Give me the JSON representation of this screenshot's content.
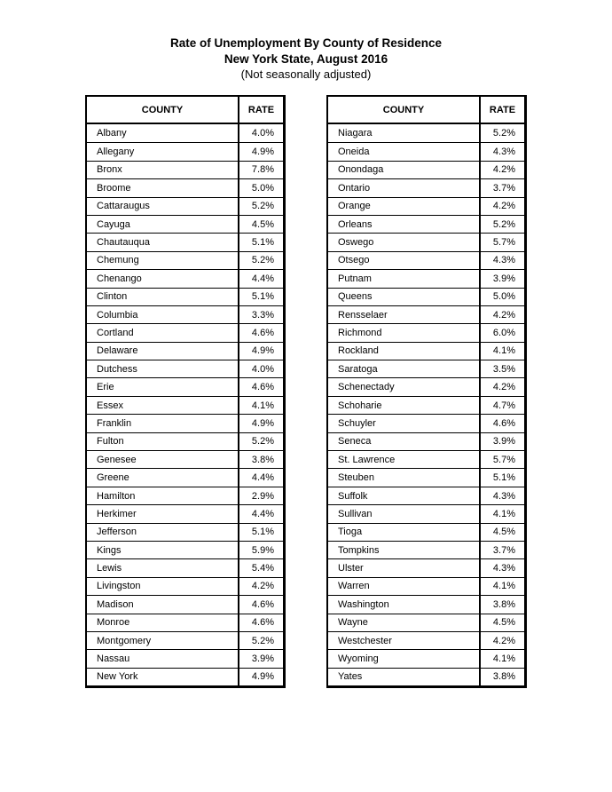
{
  "title": {
    "line1": "Rate of Unemployment By County of Residence",
    "line2": "New York State, August 2016",
    "line3": "(Not seasonally adjusted)"
  },
  "headers": {
    "county": "COUNTY",
    "rate": "RATE"
  },
  "tables": [
    {
      "rows": [
        {
          "county": "Albany",
          "rate": "4.0%"
        },
        {
          "county": "Allegany",
          "rate": "4.9%"
        },
        {
          "county": "Bronx",
          "rate": "7.8%"
        },
        {
          "county": "Broome",
          "rate": "5.0%"
        },
        {
          "county": "Cattaraugus",
          "rate": "5.2%"
        },
        {
          "county": "Cayuga",
          "rate": "4.5%"
        },
        {
          "county": "Chautauqua",
          "rate": "5.1%"
        },
        {
          "county": "Chemung",
          "rate": "5.2%"
        },
        {
          "county": "Chenango",
          "rate": "4.4%"
        },
        {
          "county": "Clinton",
          "rate": "5.1%"
        },
        {
          "county": "Columbia",
          "rate": "3.3%"
        },
        {
          "county": "Cortland",
          "rate": "4.6%"
        },
        {
          "county": "Delaware",
          "rate": "4.9%"
        },
        {
          "county": "Dutchess",
          "rate": "4.0%"
        },
        {
          "county": "Erie",
          "rate": "4.6%"
        },
        {
          "county": "Essex",
          "rate": "4.1%"
        },
        {
          "county": "Franklin",
          "rate": "4.9%"
        },
        {
          "county": "Fulton",
          "rate": "5.2%"
        },
        {
          "county": "Genesee",
          "rate": "3.8%"
        },
        {
          "county": "Greene",
          "rate": "4.4%"
        },
        {
          "county": "Hamilton",
          "rate": "2.9%"
        },
        {
          "county": "Herkimer",
          "rate": "4.4%"
        },
        {
          "county": "Jefferson",
          "rate": "5.1%"
        },
        {
          "county": "Kings",
          "rate": "5.9%"
        },
        {
          "county": "Lewis",
          "rate": "5.4%"
        },
        {
          "county": "Livingston",
          "rate": "4.2%"
        },
        {
          "county": "Madison",
          "rate": "4.6%"
        },
        {
          "county": "Monroe",
          "rate": "4.6%"
        },
        {
          "county": "Montgomery",
          "rate": "5.2%"
        },
        {
          "county": "Nassau",
          "rate": "3.9%"
        },
        {
          "county": "New York",
          "rate": "4.9%"
        }
      ]
    },
    {
      "rows": [
        {
          "county": "Niagara",
          "rate": "5.2%"
        },
        {
          "county": "Oneida",
          "rate": "4.3%"
        },
        {
          "county": "Onondaga",
          "rate": "4.2%"
        },
        {
          "county": "Ontario",
          "rate": "3.7%"
        },
        {
          "county": "Orange",
          "rate": "4.2%"
        },
        {
          "county": "Orleans",
          "rate": "5.2%"
        },
        {
          "county": "Oswego",
          "rate": "5.7%"
        },
        {
          "county": "Otsego",
          "rate": "4.3%"
        },
        {
          "county": "Putnam",
          "rate": "3.9%"
        },
        {
          "county": "Queens",
          "rate": "5.0%"
        },
        {
          "county": "Rensselaer",
          "rate": "4.2%"
        },
        {
          "county": "Richmond",
          "rate": "6.0%"
        },
        {
          "county": "Rockland",
          "rate": "4.1%"
        },
        {
          "county": "Saratoga",
          "rate": "3.5%"
        },
        {
          "county": "Schenectady",
          "rate": "4.2%"
        },
        {
          "county": "Schoharie",
          "rate": "4.7%"
        },
        {
          "county": "Schuyler",
          "rate": "4.6%"
        },
        {
          "county": "Seneca",
          "rate": "3.9%"
        },
        {
          "county": "St. Lawrence",
          "rate": "5.7%"
        },
        {
          "county": "Steuben",
          "rate": "5.1%"
        },
        {
          "county": "Suffolk",
          "rate": "4.3%"
        },
        {
          "county": "Sullivan",
          "rate": "4.1%"
        },
        {
          "county": "Tioga",
          "rate": "4.5%"
        },
        {
          "county": "Tompkins",
          "rate": "3.7%"
        },
        {
          "county": "Ulster",
          "rate": "4.3%"
        },
        {
          "county": "Warren",
          "rate": "4.1%"
        },
        {
          "county": "Washington",
          "rate": "3.8%"
        },
        {
          "county": "Wayne",
          "rate": "4.5%"
        },
        {
          "county": "Westchester",
          "rate": "4.2%"
        },
        {
          "county": "Wyoming",
          "rate": "4.1%"
        },
        {
          "county": "Yates",
          "rate": "3.8%"
        }
      ]
    }
  ]
}
